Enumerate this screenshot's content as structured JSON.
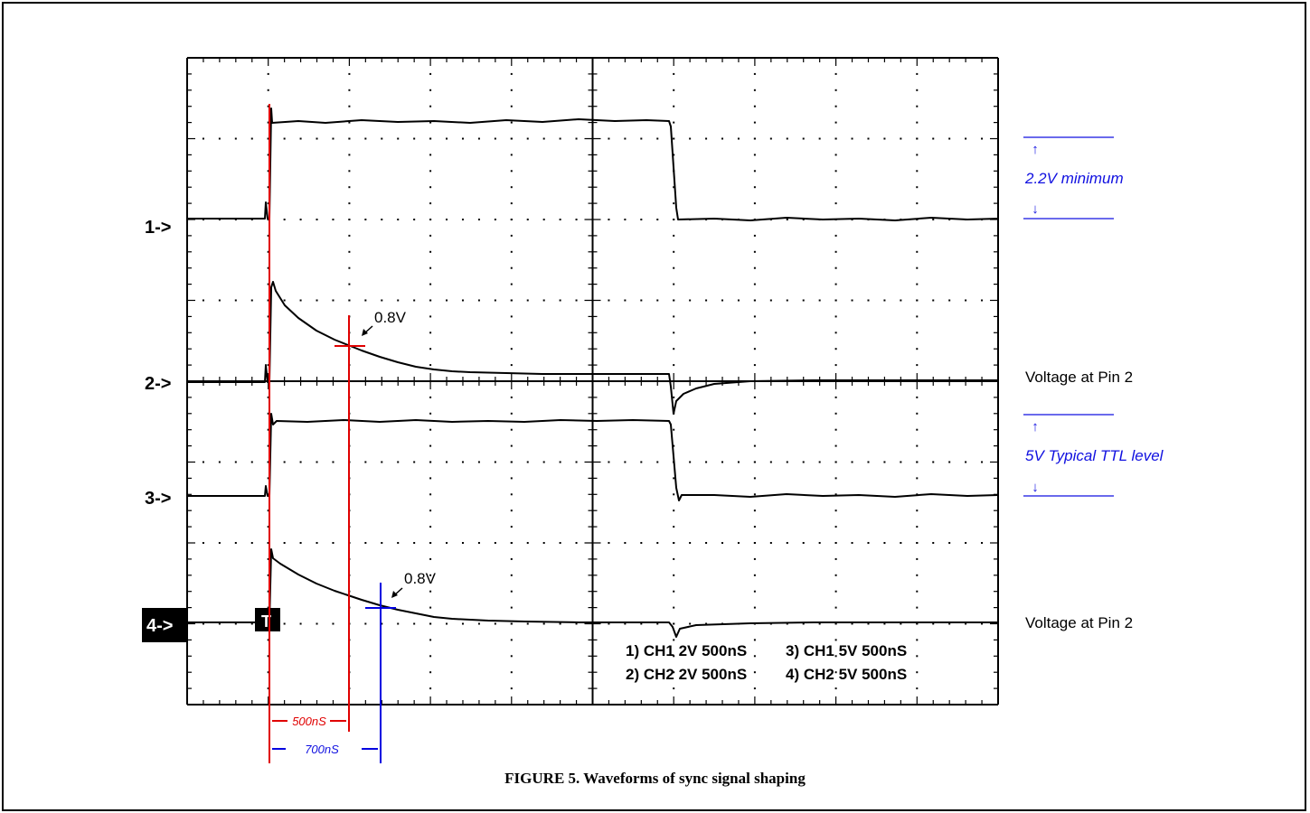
{
  "channels": [
    {
      "marker": "1->"
    },
    {
      "marker": "2->"
    },
    {
      "marker": "3->"
    },
    {
      "marker": "4->"
    }
  ],
  "trigger_marker": "T",
  "annotations": {
    "min_label": "2.2V minimum",
    "ttl_label": "5V Typical TTL level",
    "pin2_upper": "Voltage at Pin 2",
    "pin2_lower": "Voltage at Pin 2",
    "threshold_upper": "0.8V",
    "threshold_lower": "0.8V",
    "time_red": "500nS",
    "time_blue": "700nS"
  },
  "settings": [
    "1) CH1 2V 500nS",
    "3) CH1 5V 500nS",
    "2) CH2 2V 500nS",
    "4) CH2 5V 500nS"
  ],
  "caption": "FIGURE 5. Waveforms of sync signal shaping",
  "colors": {
    "trace": "#000000",
    "red_cursor": "#e00000",
    "blue_cursor": "#0000e0",
    "annotation_blue": "#1010e0"
  }
}
